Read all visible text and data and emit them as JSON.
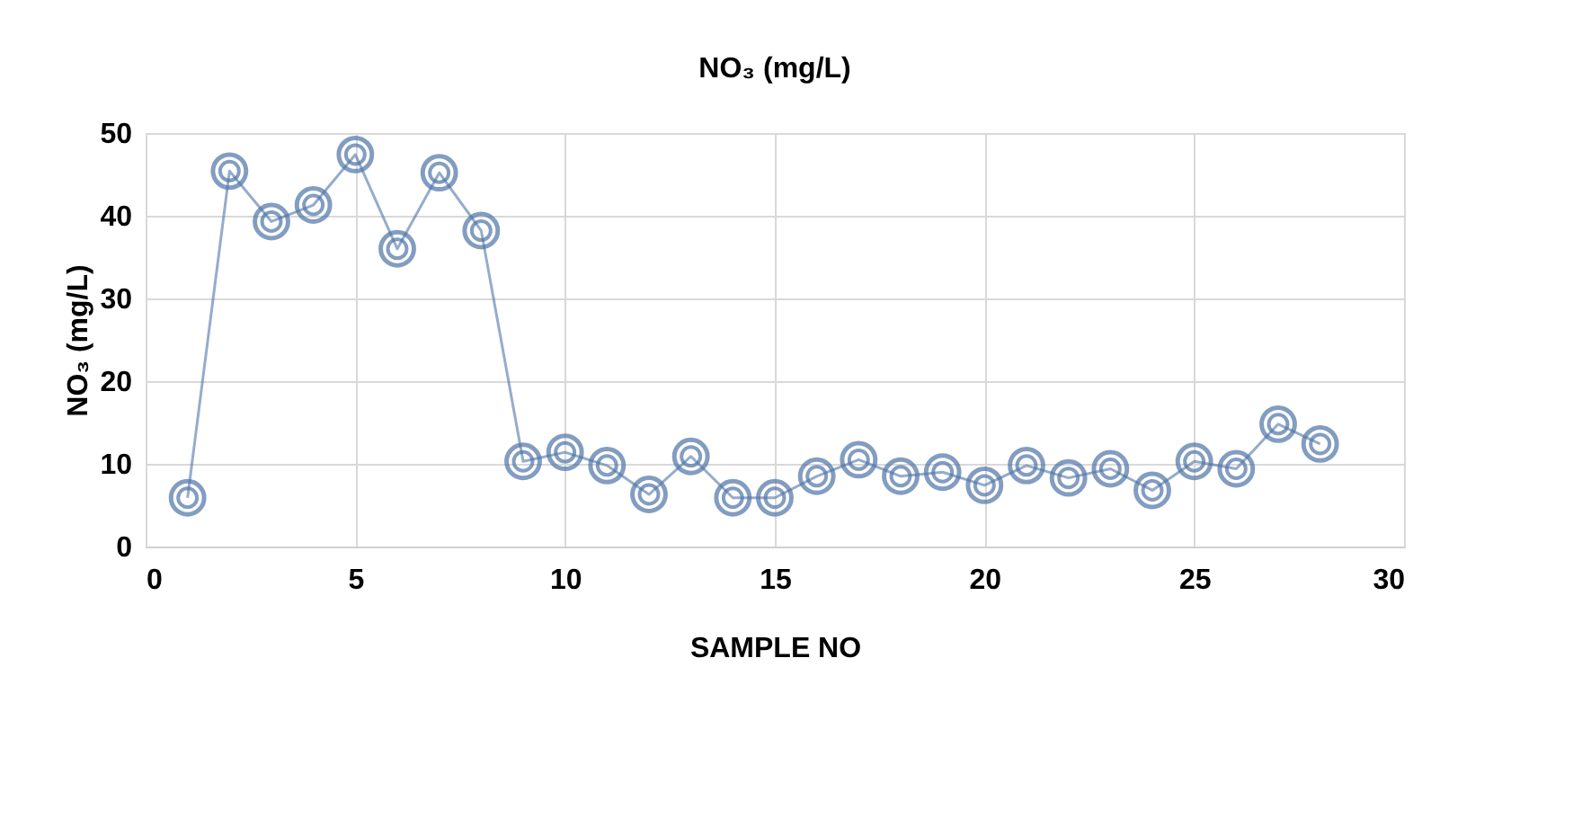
{
  "chart_data": {
    "type": "line",
    "title": "NO₃ (mg/L)",
    "xlabel": "SAMPLE NO",
    "ylabel": "NO₃ (mg/L)",
    "x": [
      1,
      2,
      3,
      4,
      5,
      6,
      7,
      8,
      9,
      10,
      11,
      12,
      13,
      14,
      15,
      16,
      17,
      18,
      19,
      20,
      21,
      22,
      23,
      24,
      25,
      26,
      27,
      28
    ],
    "series": [
      {
        "color": "#4f75a8",
        "values": [
          5.9,
          45.4,
          39.3,
          41.3,
          47.4,
          36,
          45.2,
          38.2,
          10.3,
          11.4,
          9.8,
          6.3,
          10.9,
          5.9,
          5.9,
          8.5,
          10.5,
          8.5,
          9,
          7.4,
          9.8,
          8.3,
          9.4,
          6.8,
          10.3,
          9.4,
          14.8,
          12.4
        ]
      }
    ],
    "xlim": [
      0,
      30
    ],
    "xticks": [
      0,
      5,
      10,
      15,
      20,
      25,
      30
    ],
    "ylim": [
      0,
      50
    ],
    "yticks": [
      0,
      10,
      20,
      30,
      40,
      50
    ],
    "grid": true,
    "marker": "circle",
    "line_style": "solid"
  }
}
